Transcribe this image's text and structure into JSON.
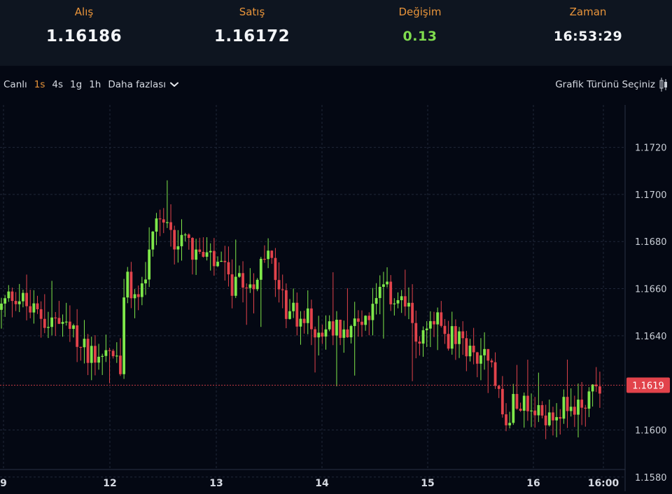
{
  "quote": {
    "bid_label": "Alış",
    "bid_value": "1.16186",
    "ask_label": "Satış",
    "ask_value": "1.16172",
    "change_label": "Değişim",
    "change_value": "0.13",
    "time_label": "Zaman",
    "time_value": "16:53:29"
  },
  "toolbar": {
    "live": "Canlı",
    "intervals": [
      "1s",
      "4s",
      "1g",
      "1h"
    ],
    "active_interval": "1s",
    "more_label": "Daha fazlası",
    "chart_type_label": "Grafik Türünü Seçiniz"
  },
  "colors": {
    "up": "#7fe84a",
    "down": "#e2434b",
    "accent": "#e8943a",
    "price_tag": "#e2434b"
  },
  "chart_data": {
    "type": "candlestick",
    "y_ticks": [
      "1.1720",
      "1.1700",
      "1.1680",
      "1.1660",
      "1.1640",
      "1.1600",
      "1.1580"
    ],
    "x_ticks": [
      "9",
      "12",
      "13",
      "14",
      "15",
      "16",
      "16:00"
    ],
    "ylim": [
      1.1574,
      1.1738
    ],
    "last_price": "1.1619",
    "last_price_value": 1.1619,
    "waypoints": [
      [
        0,
        1.1651
      ],
      [
        20,
        1.1659
      ],
      [
        45,
        1.165
      ],
      [
        70,
        1.1647
      ],
      [
        90,
        1.1644
      ],
      [
        115,
        1.1636
      ],
      [
        135,
        1.1633
      ],
      [
        160,
        1.1634
      ],
      [
        172,
        1.1624
      ],
      [
        178,
        1.1664
      ],
      [
        195,
        1.1654
      ],
      [
        210,
        1.1668
      ],
      [
        225,
        1.1687
      ],
      [
        240,
        1.1683
      ],
      [
        255,
        1.168
      ],
      [
        262,
        1.169
      ],
      [
        275,
        1.1676
      ],
      [
        295,
        1.1672
      ],
      [
        315,
        1.1668
      ],
      [
        335,
        1.166
      ],
      [
        355,
        1.1662
      ],
      [
        385,
        1.1673
      ],
      [
        405,
        1.1653
      ],
      [
        425,
        1.1648
      ],
      [
        440,
        1.1646
      ],
      [
        460,
        1.1643
      ],
      [
        485,
        1.1643
      ],
      [
        500,
        1.1646
      ],
      [
        520,
        1.1647
      ],
      [
        545,
        1.1657
      ],
      [
        565,
        1.1657
      ],
      [
        580,
        1.1652
      ],
      [
        600,
        1.1638
      ],
      [
        622,
        1.1646
      ],
      [
        640,
        1.164
      ],
      [
        660,
        1.1636
      ],
      [
        680,
        1.1631
      ],
      [
        700,
        1.1636
      ],
      [
        712,
        1.1616
      ],
      [
        722,
        1.16
      ],
      [
        740,
        1.1616
      ],
      [
        760,
        1.1605
      ],
      [
        790,
        1.1608
      ],
      [
        815,
        1.1609
      ],
      [
        838,
        1.1613
      ],
      [
        855,
        1.1621
      ]
    ]
  }
}
